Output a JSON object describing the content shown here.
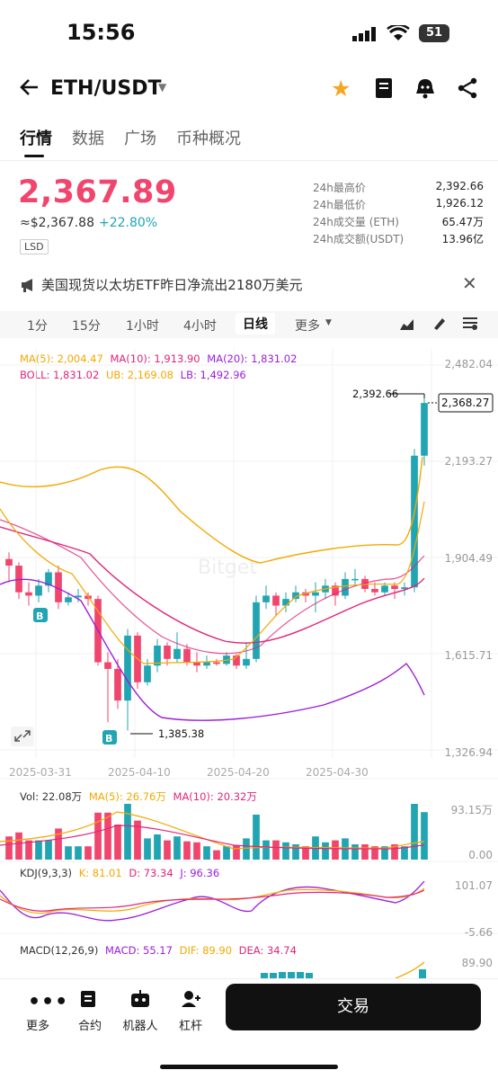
{
  "status_bar": {
    "time": "15:56",
    "battery": "51"
  },
  "header": {
    "pair": "ETH/USDT"
  },
  "tabs": [
    "行情",
    "数据",
    "广场",
    "币种概况"
  ],
  "price": {
    "last": "2,367.89",
    "fiat": "≈$2,367.88",
    "change": "+22.80%",
    "tag": "LSD"
  },
  "stats": [
    {
      "label": "24h最高价",
      "value": "2,392.66"
    },
    {
      "label": "24h最低价",
      "value": "1,926.12"
    },
    {
      "label": "24h成交量 (ETH)",
      "value": "65.47万"
    },
    {
      "label": "24h成交额(USDT)",
      "value": "13.96亿"
    }
  ],
  "notice": "美国现货以太坊ETF昨日净流出2180万美元",
  "periods": [
    "1分",
    "15分",
    "1小时",
    "4小时",
    "日线",
    "更多"
  ],
  "indicators": {
    "ma": {
      "ma5": "MA(5): 2,004.47",
      "ma10": "MA(10): 1,913.90",
      "ma20": "MA(20): 1,831.02"
    },
    "boll": {
      "boll": "BOLL: 1,831.02",
      "ub": "UB: 2,169.08",
      "lb": "LB: 1,492.96"
    },
    "vol": {
      "vol": "Vol: 22.08万",
      "ma5": "MA(5): 26.76万",
      "ma10": "MA(10): 20.32万"
    },
    "kdj": {
      "name": "KDJ(9,3,3)",
      "k": "K: 81.01",
      "d": "D: 73.34",
      "j": "J: 96.36"
    },
    "macd": {
      "name": "MACD(12,26,9)",
      "macd": "MACD: 55.17",
      "dif": "DIF: 89.90",
      "dea": "DEA: 34.74"
    }
  },
  "y_ticks_main": [
    "2,482.04",
    "2,193.27",
    "1,904.49",
    "1,615.71",
    "1,326.94"
  ],
  "y_ticks_vol": [
    "93.15万",
    "0.00"
  ],
  "y_ticks_kdj": [
    "101.07",
    "-5.66"
  ],
  "y_tick_macd": "89.90",
  "x_ticks": [
    "2025-03-31",
    "2025-04-10",
    "2025-04-20",
    "2025-04-30"
  ],
  "chart_labels": {
    "high": "2,392.66",
    "low": "1,385.38",
    "current": "2,368.27",
    "buy_marker": "B",
    "watermark": "Bitget"
  },
  "bottom_nav": [
    "更多",
    "合约",
    "机器人",
    "杠杆"
  ],
  "trade_button": "交易",
  "colors": {
    "up": "#21a5b2",
    "down": "#f0466e",
    "ma5": "#f2a900",
    "ma10": "#e0267a",
    "ma20": "#9b1fd8"
  },
  "chart_data": {
    "type": "candlestick",
    "title": "",
    "y_range": [
      1326.94,
      2482.04
    ],
    "candles": [
      {
        "date": "2025-03-28",
        "open": 1900,
        "high": 1920,
        "low": 1830,
        "close": 1880
      },
      {
        "date": "2025-03-29",
        "open": 1880,
        "high": 1890,
        "low": 1780,
        "close": 1800
      },
      {
        "date": "2025-03-30",
        "open": 1800,
        "high": 1830,
        "low": 1760,
        "close": 1790
      },
      {
        "date": "2025-03-31",
        "open": 1790,
        "high": 1840,
        "low": 1770,
        "close": 1820
      },
      {
        "date": "2025-04-01",
        "open": 1820,
        "high": 1870,
        "low": 1800,
        "close": 1860
      },
      {
        "date": "2025-04-02",
        "open": 1860,
        "high": 1880,
        "low": 1750,
        "close": 1770
      },
      {
        "date": "2025-04-03",
        "open": 1770,
        "high": 1800,
        "low": 1760,
        "close": 1785
      },
      {
        "date": "2025-04-04",
        "open": 1785,
        "high": 1810,
        "low": 1770,
        "close": 1790
      },
      {
        "date": "2025-04-05",
        "open": 1790,
        "high": 1800,
        "low": 1760,
        "close": 1780
      },
      {
        "date": "2025-04-06",
        "open": 1780,
        "high": 1790,
        "low": 1580,
        "close": 1590
      },
      {
        "date": "2025-04-07",
        "open": 1590,
        "high": 1620,
        "low": 1410,
        "close": 1570
      },
      {
        "date": "2025-04-08",
        "open": 1570,
        "high": 1600,
        "low": 1450,
        "close": 1475
      },
      {
        "date": "2025-04-09",
        "open": 1475,
        "high": 1690,
        "low": 1385.38,
        "close": 1670
      },
      {
        "date": "2025-04-10",
        "open": 1670,
        "high": 1680,
        "low": 1510,
        "close": 1530
      },
      {
        "date": "2025-04-11",
        "open": 1530,
        "high": 1600,
        "low": 1520,
        "close": 1580
      },
      {
        "date": "2025-04-12",
        "open": 1580,
        "high": 1660,
        "low": 1560,
        "close": 1640
      },
      {
        "date": "2025-04-13",
        "open": 1640,
        "high": 1650,
        "low": 1580,
        "close": 1600
      },
      {
        "date": "2025-04-14",
        "open": 1600,
        "high": 1680,
        "low": 1590,
        "close": 1630
      },
      {
        "date": "2025-04-15",
        "open": 1630,
        "high": 1645,
        "low": 1580,
        "close": 1590
      },
      {
        "date": "2025-04-16",
        "open": 1590,
        "high": 1620,
        "low": 1560,
        "close": 1580
      },
      {
        "date": "2025-04-17",
        "open": 1580,
        "high": 1610,
        "low": 1570,
        "close": 1590
      },
      {
        "date": "2025-04-18",
        "open": 1590,
        "high": 1600,
        "low": 1580,
        "close": 1585
      },
      {
        "date": "2025-04-19",
        "open": 1585,
        "high": 1620,
        "low": 1580,
        "close": 1610
      },
      {
        "date": "2025-04-20",
        "open": 1610,
        "high": 1615,
        "low": 1570,
        "close": 1580
      },
      {
        "date": "2025-04-21",
        "open": 1580,
        "high": 1650,
        "low": 1570,
        "close": 1600
      },
      {
        "date": "2025-04-22",
        "open": 1600,
        "high": 1790,
        "low": 1590,
        "close": 1770
      },
      {
        "date": "2025-04-23",
        "open": 1770,
        "high": 1820,
        "low": 1750,
        "close": 1790
      },
      {
        "date": "2025-04-24",
        "open": 1790,
        "high": 1800,
        "low": 1730,
        "close": 1760
      },
      {
        "date": "2025-04-25",
        "open": 1760,
        "high": 1800,
        "low": 1740,
        "close": 1780
      },
      {
        "date": "2025-04-26",
        "open": 1780,
        "high": 1820,
        "low": 1770,
        "close": 1800
      },
      {
        "date": "2025-04-27",
        "open": 1800,
        "high": 1810,
        "low": 1770,
        "close": 1790
      },
      {
        "date": "2025-04-28",
        "open": 1790,
        "high": 1830,
        "low": 1740,
        "close": 1800
      },
      {
        "date": "2025-04-29",
        "open": 1800,
        "high": 1840,
        "low": 1780,
        "close": 1820
      },
      {
        "date": "2025-04-30",
        "open": 1820,
        "high": 1830,
        "low": 1760,
        "close": 1790
      },
      {
        "date": "2025-05-01",
        "open": 1790,
        "high": 1860,
        "low": 1780,
        "close": 1840
      },
      {
        "date": "2025-05-02",
        "open": 1840,
        "high": 1870,
        "low": 1820,
        "close": 1840
      },
      {
        "date": "2025-05-03",
        "open": 1840,
        "high": 1850,
        "low": 1800,
        "close": 1810
      },
      {
        "date": "2025-05-04",
        "open": 1810,
        "high": 1830,
        "low": 1790,
        "close": 1800
      },
      {
        "date": "2025-05-05",
        "open": 1800,
        "high": 1830,
        "low": 1790,
        "close": 1820
      },
      {
        "date": "2025-05-06",
        "open": 1820,
        "high": 1830,
        "low": 1780,
        "close": 1810
      },
      {
        "date": "2025-05-07",
        "open": 1810,
        "high": 1830,
        "low": 1790,
        "close": 1815
      },
      {
        "date": "2025-05-08",
        "open": 1815,
        "high": 2230,
        "low": 1800,
        "close": 2210
      },
      {
        "date": "2025-05-09",
        "open": 2210,
        "high": 2392.66,
        "low": 2180,
        "close": 2368.27
      }
    ]
  }
}
